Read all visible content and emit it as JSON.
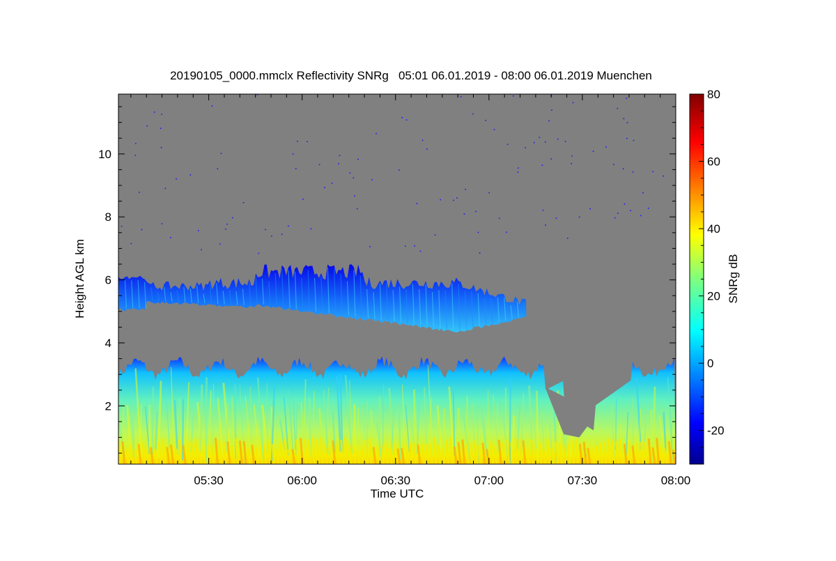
{
  "chart_data": {
    "type": "heatmap",
    "title": "20190105_0000.mmclx Reflectivity SNRg   05:01 06.01.2019 - 08:00 06.01.2019 Muenchen",
    "xlabel": "Time UTC",
    "ylabel": "Height AGL km",
    "xlim": [
      "05:01",
      "08:00"
    ],
    "ylim": [
      0.15,
      11.9
    ],
    "x_ticks": [
      "05:30",
      "06:00",
      "06:30",
      "07:00",
      "07:30",
      "08:00"
    ],
    "y_ticks": [
      2,
      4,
      6,
      8,
      10
    ],
    "background_color": "#808080",
    "colorbar": {
      "label": "SNRg dB",
      "range": [
        -30,
        80
      ],
      "ticks": [
        80,
        60,
        40,
        20,
        0,
        -20
      ],
      "colormap": "jet"
    },
    "features": [
      {
        "layer": "lower precipitation/cloud layer",
        "x_range": [
          "05:01",
          "08:00"
        ],
        "top_km": [
          3.0,
          3.6
        ],
        "base_km": 0.15,
        "snr_db_range": [
          -15,
          45
        ]
      },
      {
        "layer": "mid-level cloud layer",
        "x_range": [
          "05:01",
          "07:12"
        ],
        "height_km": [
          4.3,
          6.5
        ],
        "snr_db_range": [
          -25,
          10
        ]
      }
    ]
  }
}
